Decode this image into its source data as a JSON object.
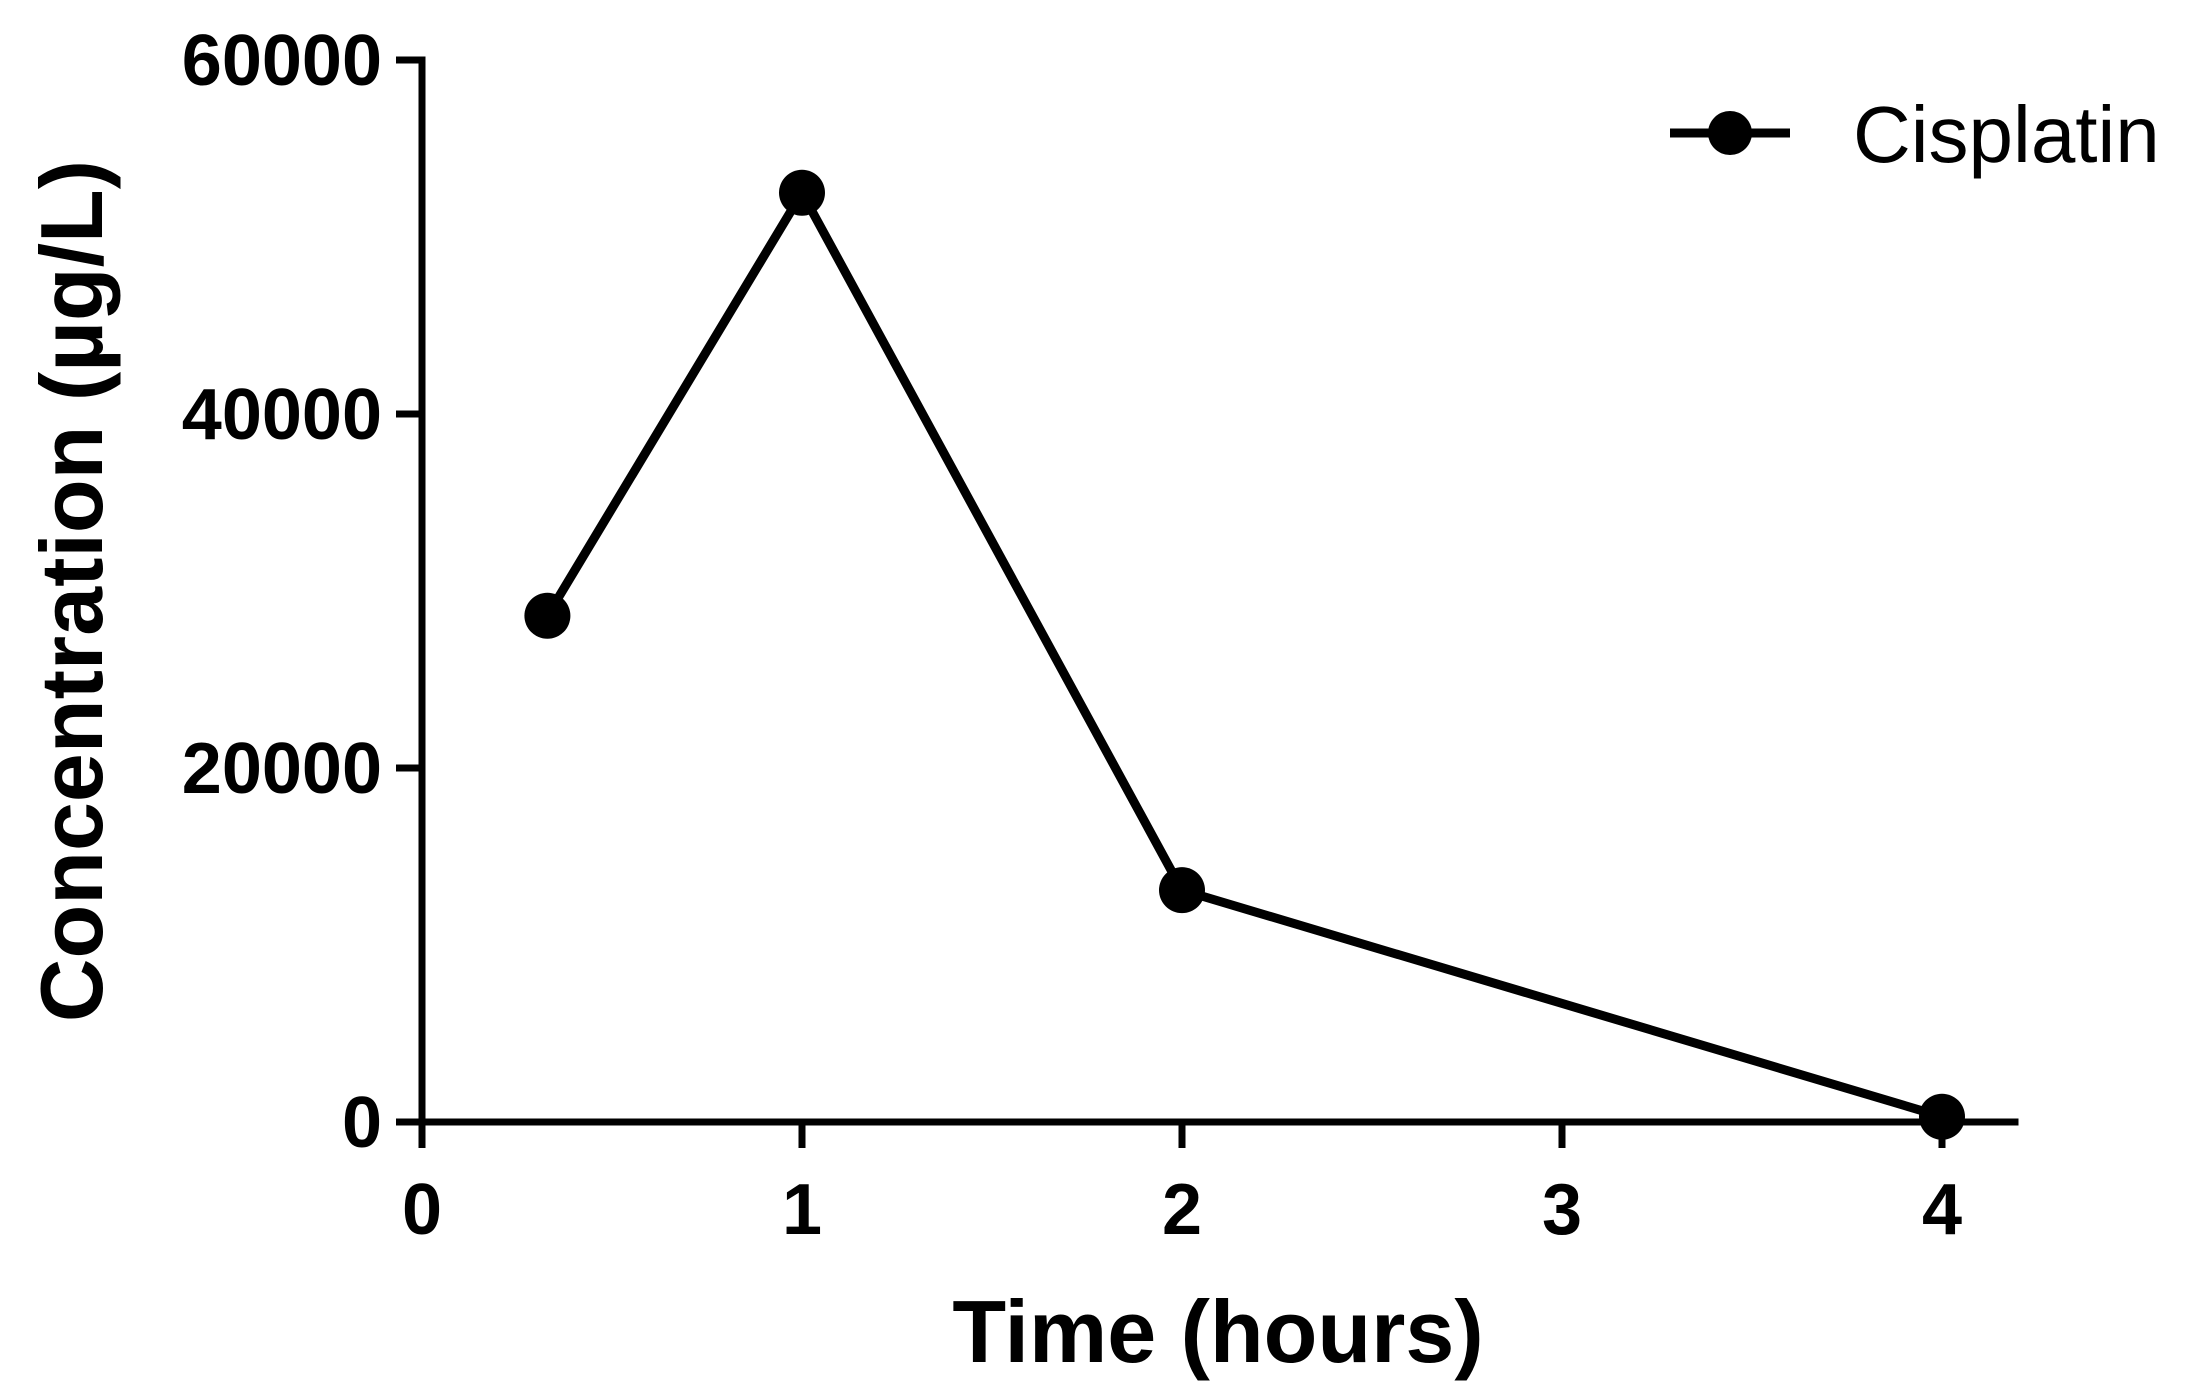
{
  "chart_data": {
    "type": "line",
    "title": "",
    "xlabel": "Time (hours)",
    "ylabel": "Concentration (µg/L)",
    "x_ticks": [
      {
        "position": 0,
        "label": "0"
      },
      {
        "position": 1,
        "label": "1"
      },
      {
        "position": 2,
        "label": "2"
      },
      {
        "position": 3,
        "label": "3"
      },
      {
        "position": 4,
        "label": "4"
      }
    ],
    "y_ticks": [
      0,
      20000,
      40000,
      60000
    ],
    "y_tick_labels": [
      "0",
      "20000",
      "40000",
      "60000"
    ],
    "xlim": [
      0,
      4.2
    ],
    "ylim": [
      0,
      60000
    ],
    "grid": false,
    "legend_position": "top-right",
    "series": [
      {
        "name": "Cisplatin",
        "color": "#000000",
        "marker": "circle",
        "points": [
          {
            "x": 0.33,
            "y": 28600
          },
          {
            "x": 1,
            "y": 52500
          },
          {
            "x": 2,
            "y": 13100
          },
          {
            "x": 4,
            "y": 300
          }
        ]
      }
    ]
  }
}
